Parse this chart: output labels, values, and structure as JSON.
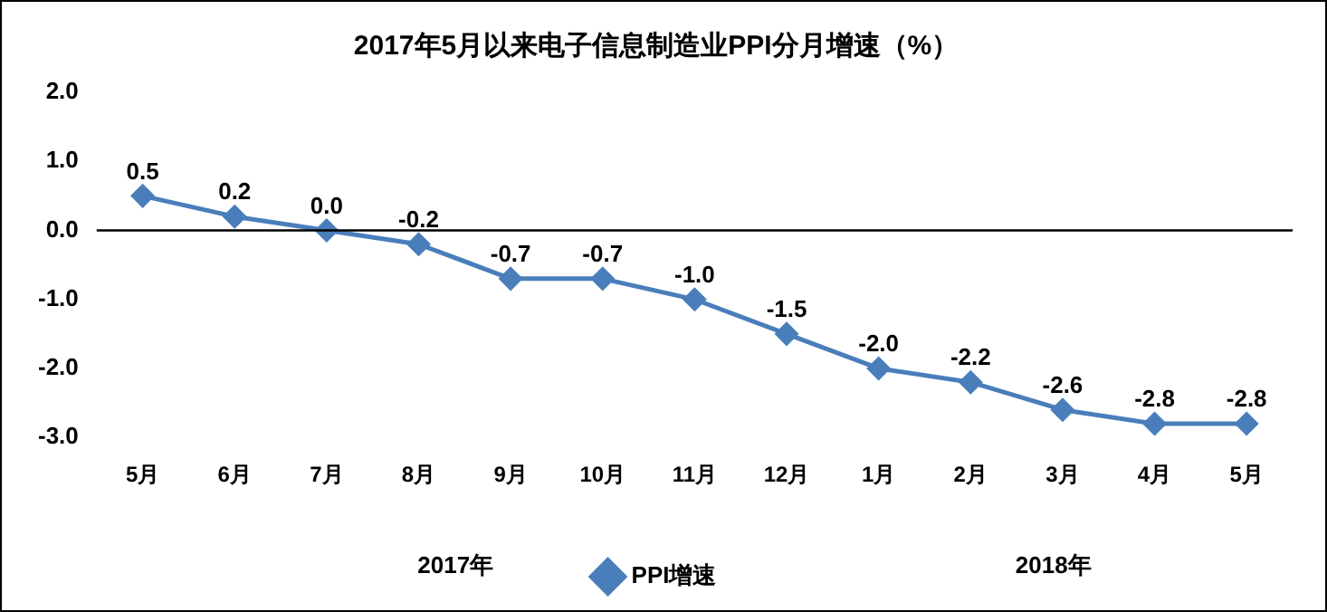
{
  "chart_data": {
    "type": "line",
    "title": "2017年5月以来电子信息制造业PPI分月增速（%）",
    "categories": [
      "5月",
      "6月",
      "7月",
      "8月",
      "9月",
      "10月",
      "11月",
      "12月",
      "1月",
      "2月",
      "3月",
      "4月",
      "5月"
    ],
    "series": [
      {
        "name": "PPI增速",
        "color": "#4a7ebb",
        "values": [
          0.5,
          0.2,
          0.0,
          -0.2,
          -0.7,
          -0.7,
          -1.0,
          -1.5,
          -2.0,
          -2.2,
          -2.6,
          -2.8,
          -2.8
        ],
        "value_labels": [
          "0.5",
          "0.2",
          "0.0",
          "-0.2",
          "-0.7",
          "-0.7",
          "-1.0",
          "-1.5",
          "-2.0",
          "-2.2",
          "-2.6",
          "-2.8",
          "-2.8"
        ]
      }
    ],
    "ylim": [
      -3,
      2
    ],
    "yticks": [
      {
        "value": 2,
        "label": "2.0"
      },
      {
        "value": 1,
        "label": "1.0"
      },
      {
        "value": 0,
        "label": "0.0"
      },
      {
        "value": -1,
        "label": "-1.0"
      },
      {
        "value": -2,
        "label": "-2.0"
      },
      {
        "value": -3,
        "label": "-3.0"
      }
    ],
    "ref_lines": [
      {
        "axis": "y",
        "value": 0,
        "color": "#000000"
      }
    ],
    "annotations": [
      "2017年",
      "2018年"
    ],
    "grid": false,
    "legend": "bottom",
    "marker": "diamond",
    "line_style": "solid"
  }
}
